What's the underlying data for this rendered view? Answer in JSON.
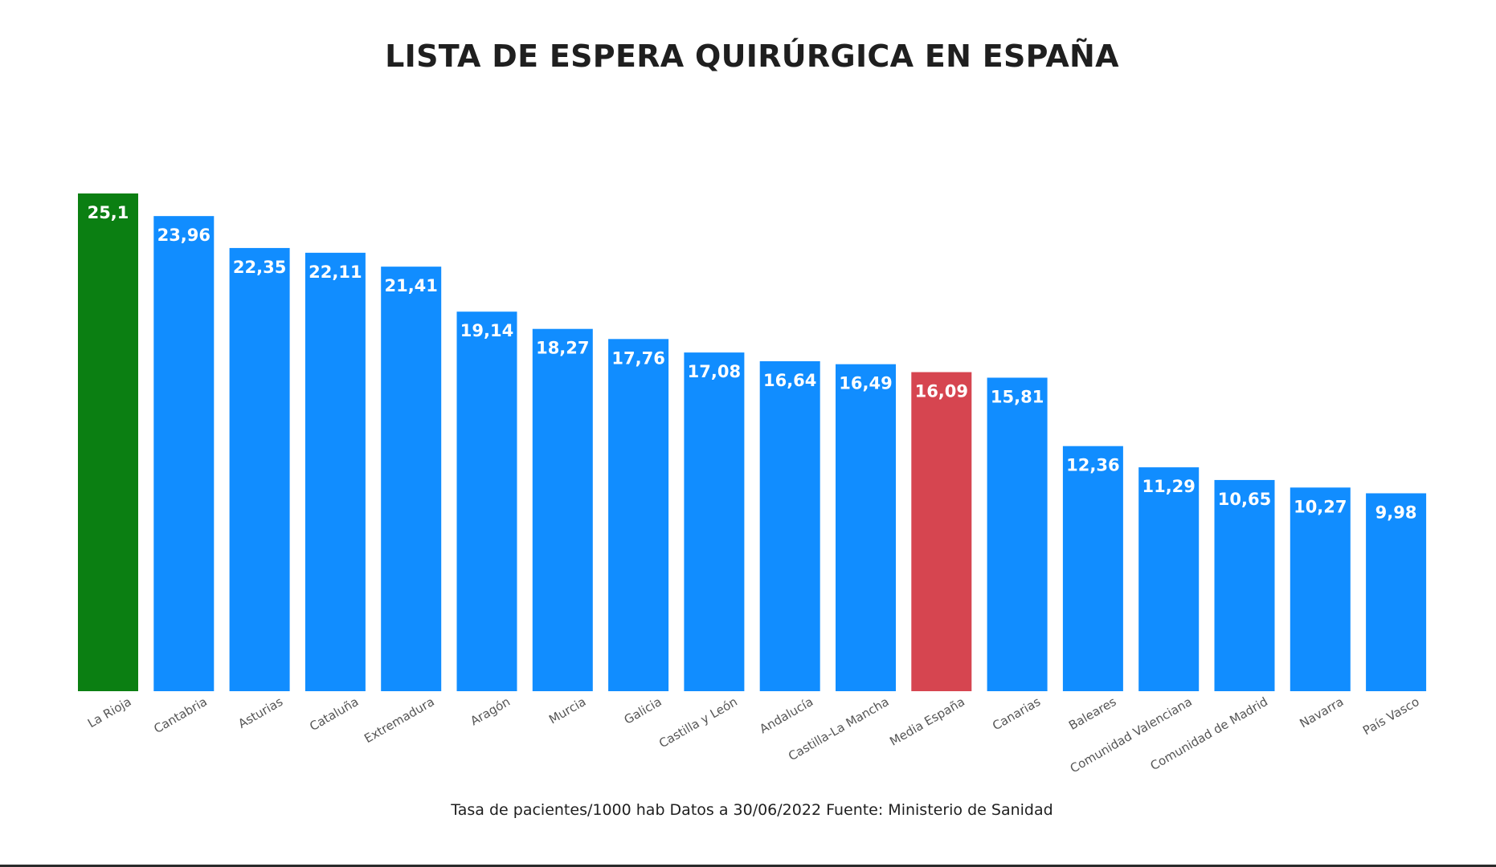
{
  "title": "LISTA DE ESPERA QUIRÚRGICA EN ESPAÑA",
  "caption": "Tasa de pacientes/1000 hab Datos a 30/06/2022 Fuente: Ministerio de Sanidad",
  "colors": {
    "default_bar": "#118DFF",
    "highlight_max": "#0B7F12",
    "highlight_average": "#D64550",
    "value_label": "#FFFFFF",
    "category_label": "#555555"
  },
  "chart_data": {
    "type": "bar",
    "title": "LISTA DE ESPERA QUIRÚRGICA EN ESPAÑA",
    "xlabel": "",
    "ylabel": "",
    "ylim": [
      0,
      25.1
    ],
    "grid": false,
    "legend": "none",
    "categories": [
      "La Rioja",
      "Cantabria",
      "Asturias",
      "Cataluña",
      "Extremadura",
      "Aragón",
      "Murcia",
      "Galicia",
      "Castilla y León",
      "Andalucía",
      "Castilla-La Mancha",
      "Media España",
      "Canarias",
      "Baleares",
      "Comunidad Valenciana",
      "Comunidad de Madrid",
      "Navarra",
      "País Vasco"
    ],
    "values": [
      25.1,
      23.96,
      22.35,
      22.11,
      21.41,
      19.14,
      18.27,
      17.76,
      17.08,
      16.64,
      16.49,
      16.09,
      15.81,
      12.36,
      11.29,
      10.65,
      10.27,
      9.98
    ],
    "value_labels": [
      "25,1",
      "23,96",
      "22,35",
      "22,11",
      "21,41",
      "19,14",
      "18,27",
      "17,76",
      "17,08",
      "16,64",
      "16,49",
      "16,09",
      "15,81",
      "12,36",
      "11,29",
      "10,65",
      "10,27",
      "9,98"
    ],
    "bar_colors": [
      "#0B7F12",
      "#118DFF",
      "#118DFF",
      "#118DFF",
      "#118DFF",
      "#118DFF",
      "#118DFF",
      "#118DFF",
      "#118DFF",
      "#118DFF",
      "#118DFF",
      "#D64550",
      "#118DFF",
      "#118DFF",
      "#118DFF",
      "#118DFF",
      "#118DFF",
      "#118DFF"
    ]
  }
}
